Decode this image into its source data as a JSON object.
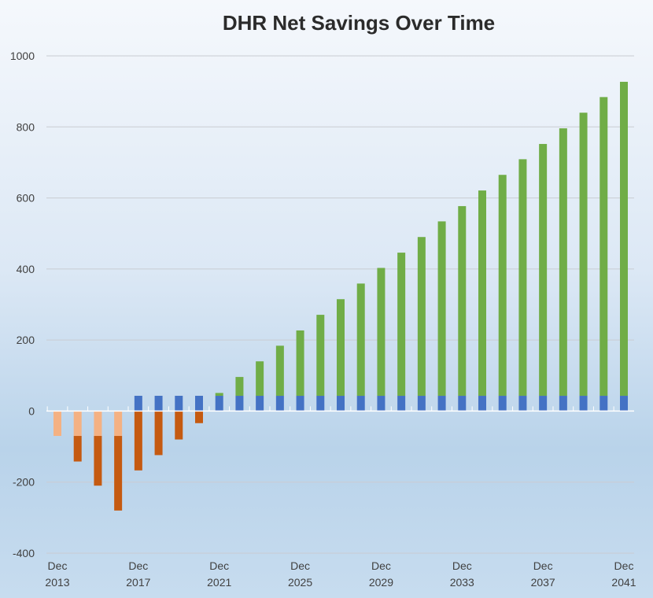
{
  "chart_data": {
    "type": "bar",
    "title": "DHR Net Savings Over Time",
    "xlabel": "",
    "ylabel": "",
    "ylim": [
      -400,
      1000
    ],
    "yticks": [
      1000,
      800,
      600,
      400,
      200,
      0,
      -200,
      -400
    ],
    "grid": true,
    "legend": "none",
    "categories": [
      "2013",
      "2014",
      "2015",
      "2016",
      "2017",
      "2018",
      "2019",
      "2020",
      "2021",
      "2022",
      "2023",
      "2024",
      "2025",
      "2026",
      "2027",
      "2028",
      "2029",
      "2030",
      "2031",
      "2032",
      "2033",
      "2034",
      "2035",
      "2036",
      "2037",
      "2038",
      "2039",
      "2040",
      "2041"
    ],
    "x_tick_labels": [
      {
        "line1": "Dec",
        "line2": "2013",
        "index": 0
      },
      {
        "line1": "Dec",
        "line2": "2017",
        "index": 4
      },
      {
        "line1": "Dec",
        "line2": "2021",
        "index": 8
      },
      {
        "line1": "Dec",
        "line2": "2025",
        "index": 12
      },
      {
        "line1": "Dec",
        "line2": "2029",
        "index": 16
      },
      {
        "line1": "Dec",
        "line2": "2033",
        "index": 20
      },
      {
        "line1": "Dec",
        "line2": "2037",
        "index": 24
      },
      {
        "line1": "Dec",
        "line2": "2041",
        "index": 28
      }
    ],
    "series": [
      {
        "color": "#f4b183",
        "values": [
          -70,
          -70,
          -70,
          -70,
          0,
          0,
          0,
          0,
          0,
          0,
          0,
          0,
          0,
          0,
          0,
          0,
          0,
          0,
          0,
          0,
          0,
          0,
          0,
          0,
          0,
          0,
          0,
          0,
          0
        ]
      },
      {
        "color": "#c55a11",
        "values": [
          0,
          -72,
          -140,
          -210,
          -167,
          -124,
          -80,
          -34,
          0,
          0,
          0,
          0,
          0,
          0,
          0,
          0,
          0,
          0,
          0,
          0,
          0,
          0,
          0,
          0,
          0,
          0,
          0,
          0,
          0
        ]
      },
      {
        "color": "#4472c4",
        "values": [
          0,
          0,
          0,
          0,
          43,
          43,
          43,
          43,
          43,
          43,
          43,
          43,
          43,
          43,
          43,
          43,
          43,
          43,
          43,
          43,
          43,
          43,
          43,
          43,
          43,
          43,
          43,
          43,
          43
        ]
      },
      {
        "color": "#70ad47",
        "values": [
          0,
          0,
          0,
          0,
          0,
          0,
          0,
          0,
          8,
          53,
          97,
          141,
          184,
          228,
          272,
          316,
          360,
          403,
          447,
          491,
          534,
          578,
          622,
          666,
          709,
          753,
          797,
          841,
          884
        ]
      }
    ]
  }
}
